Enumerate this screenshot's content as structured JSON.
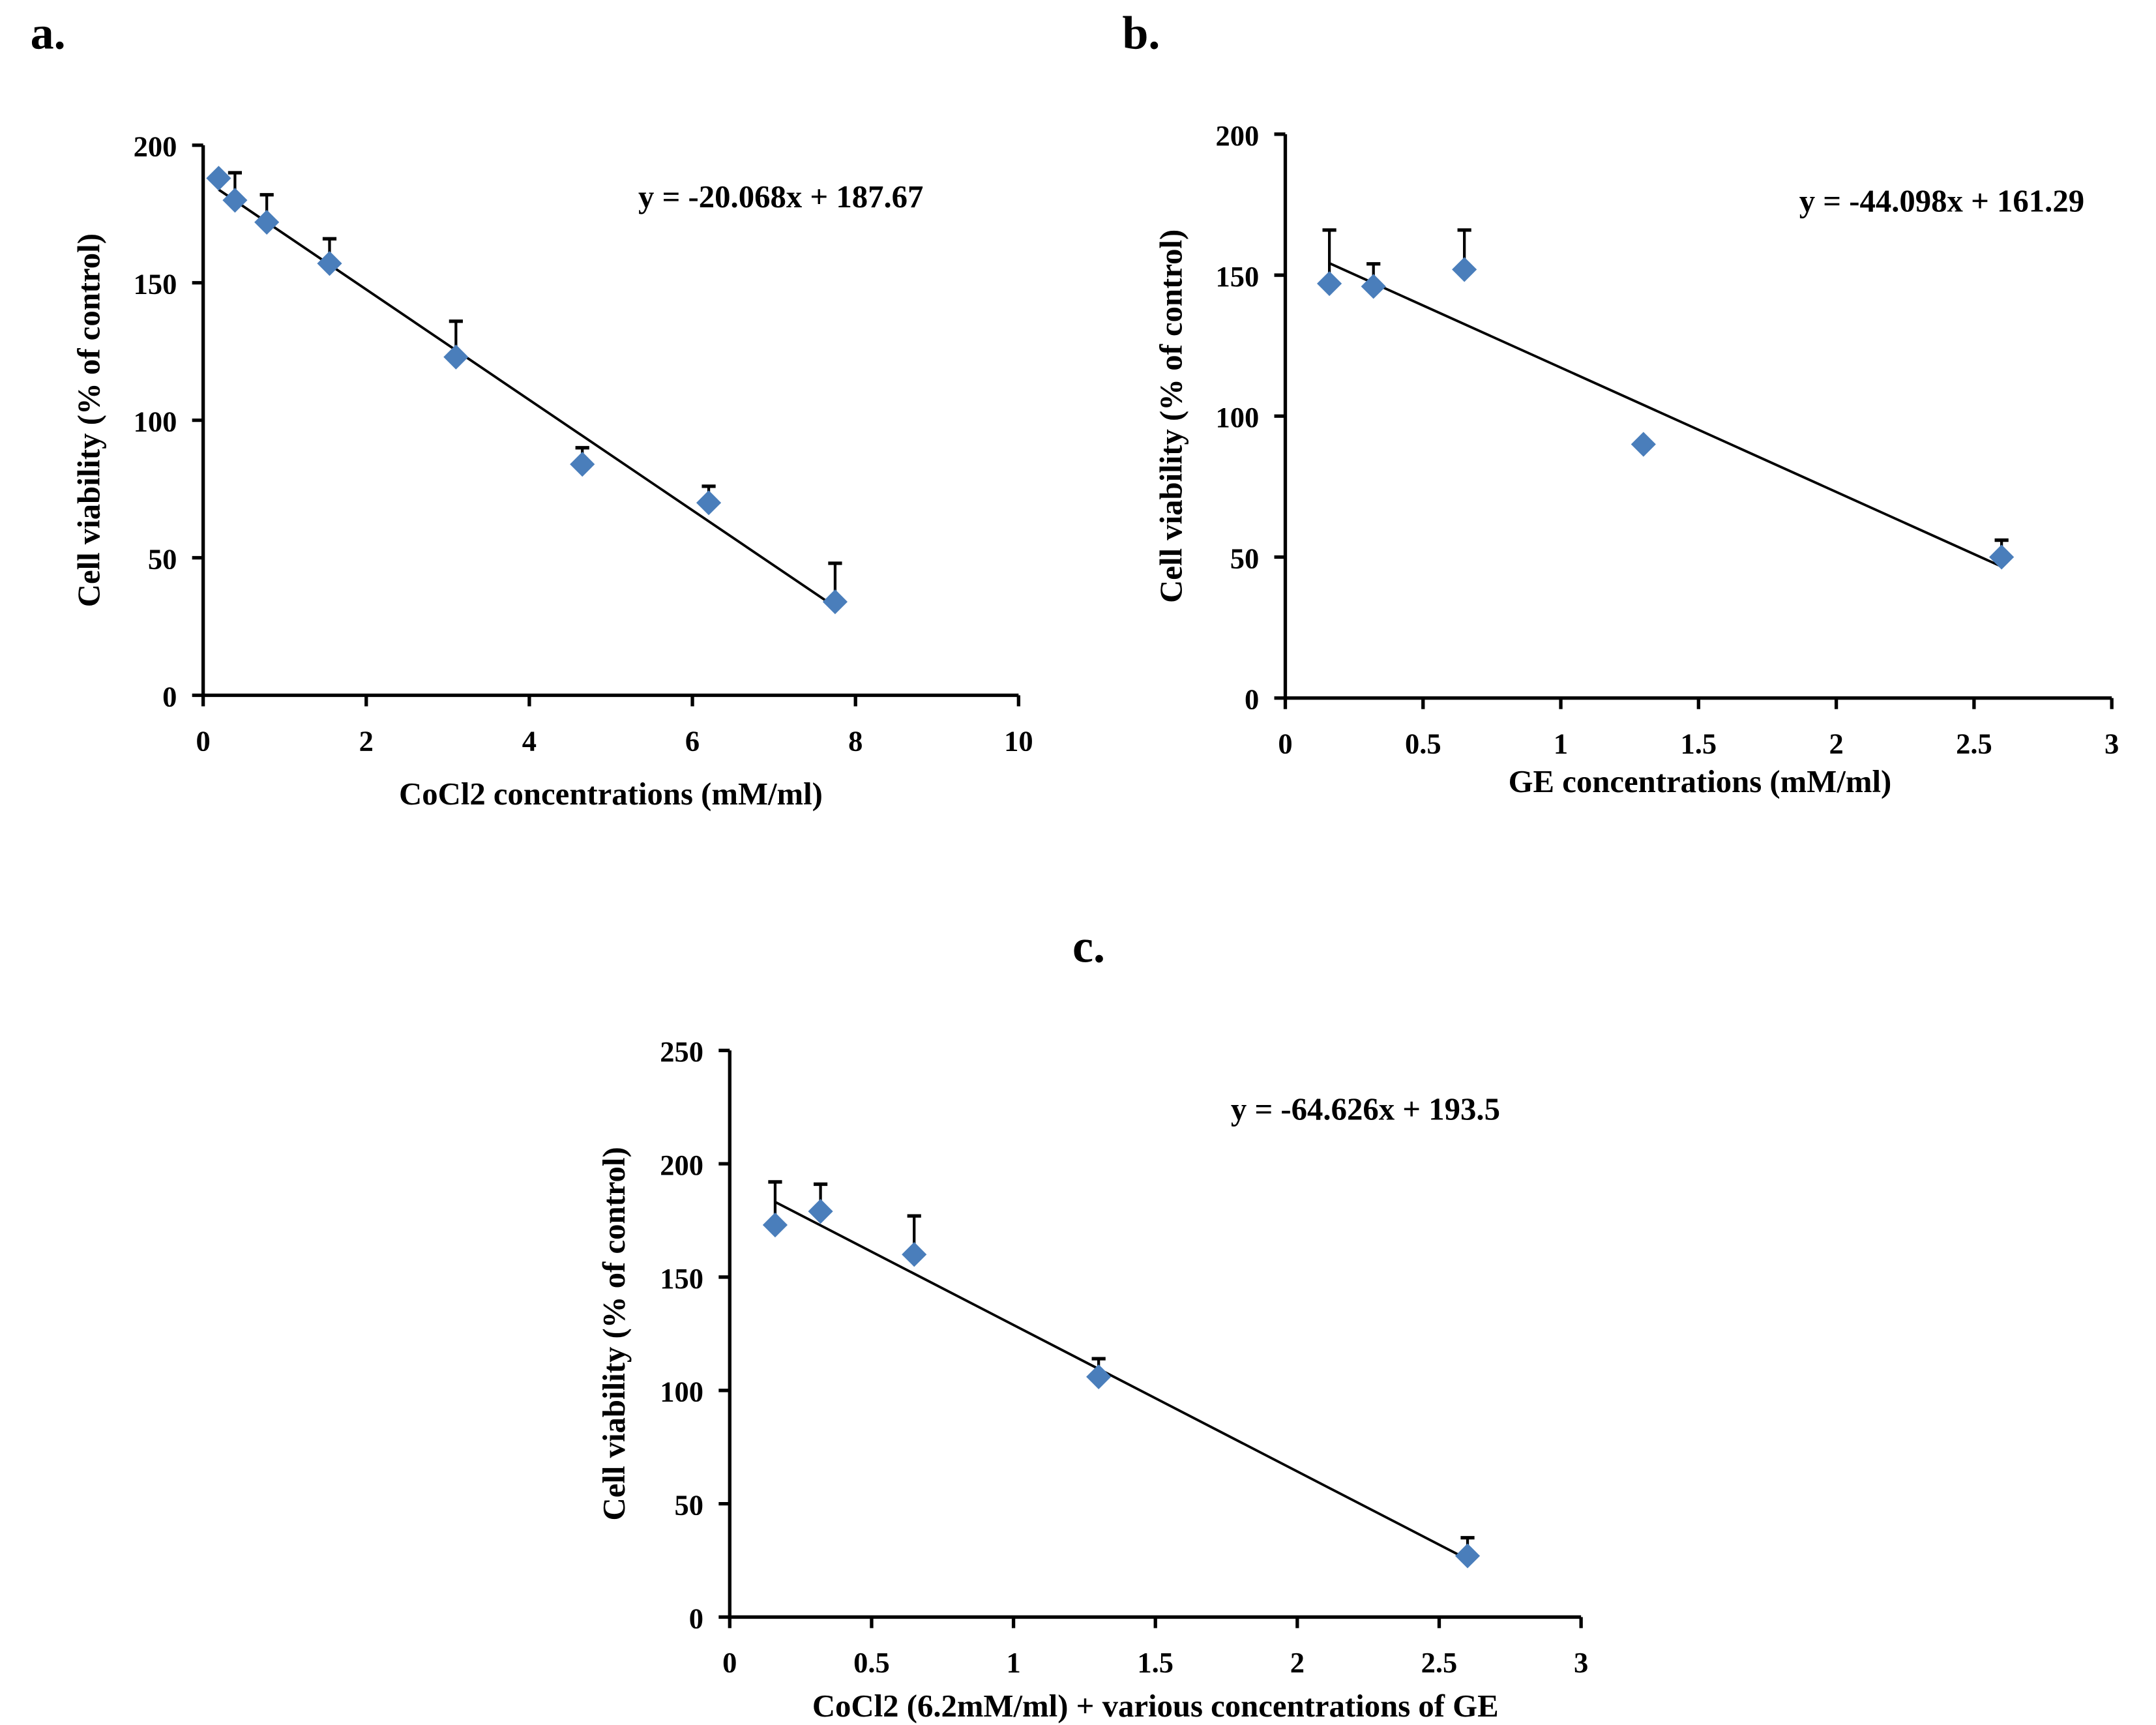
{
  "chart_data": [
    {
      "panel": "a.",
      "type": "scatter",
      "xlabel": "CoCl2 concentrations (mM/ml)",
      "ylabel": "Cell viability (% of control)",
      "xlim": [
        0,
        10
      ],
      "ylim": [
        0,
        200
      ],
      "xticks": [
        0,
        2,
        4,
        6,
        8,
        10
      ],
      "xtick_labels": [
        "0",
        "2",
        "4",
        "6",
        "8",
        "10"
      ],
      "yticks": [
        0,
        50,
        100,
        150,
        200
      ],
      "ytick_labels": [
        "0",
        "50",
        "100",
        "150",
        "200"
      ],
      "x": [
        0.19,
        0.39,
        0.78,
        1.55,
        3.1,
        4.65,
        6.2,
        7.75
      ],
      "y": [
        188,
        180,
        172,
        157,
        123,
        84,
        70,
        34
      ],
      "error_upper": [
        188,
        190,
        182,
        166,
        136,
        90,
        76,
        48
      ],
      "trendline": {
        "slope": -20.068,
        "intercept": 187.67,
        "x_range": [
          0.19,
          7.75
        ]
      },
      "equation": "y = -20.068x + 187.67",
      "marker_color": "#4a7ebb",
      "grid": false
    },
    {
      "panel": "b.",
      "type": "scatter",
      "xlabel": "GE concentrations (mM/ml)",
      "ylabel": "Cell viability (% of control)",
      "xlim": [
        0,
        3
      ],
      "ylim": [
        0,
        200
      ],
      "xticks": [
        0,
        0.5,
        1,
        1.5,
        2,
        2.5,
        3
      ],
      "xtick_labels": [
        "0",
        "0.5",
        "1",
        "1.5",
        "2",
        "2.5",
        "3"
      ],
      "yticks": [
        0,
        50,
        100,
        150,
        200
      ],
      "ytick_labels": [
        "0",
        "50",
        "100",
        "150",
        "200"
      ],
      "x": [
        0.16,
        0.32,
        0.65,
        1.3,
        2.6
      ],
      "y": [
        147,
        146,
        152,
        90,
        50
      ],
      "error_upper": [
        166,
        154,
        166,
        90,
        56
      ],
      "trendline": {
        "slope": -44.098,
        "intercept": 161.29,
        "x_range": [
          0.16,
          2.6
        ]
      },
      "equation": "y = -44.098x + 161.29",
      "marker_color": "#4a7ebb",
      "grid": false
    },
    {
      "panel": "c.",
      "type": "scatter",
      "xlabel": "CoCl2 (6.2mM/ml) + various concentrations of GE",
      "ylabel": "Cell viability (% of control)",
      "xlim": [
        0,
        3
      ],
      "ylim": [
        0,
        250
      ],
      "xticks": [
        0,
        0.5,
        1,
        1.5,
        2,
        2.5,
        3
      ],
      "xtick_labels": [
        "0",
        "0.5",
        "1",
        "1.5",
        "2",
        "2.5",
        "3"
      ],
      "yticks": [
        0,
        50,
        100,
        150,
        200,
        250
      ],
      "ytick_labels": [
        "0",
        "50",
        "100",
        "150",
        "200",
        "250"
      ],
      "x": [
        0.16,
        0.32,
        0.65,
        1.3,
        2.6
      ],
      "y": [
        173,
        179,
        160,
        106,
        27
      ],
      "error_upper": [
        192,
        191,
        177,
        114,
        35
      ],
      "trendline": {
        "slope": -64.626,
        "intercept": 193.5,
        "x_range": [
          0.16,
          2.6
        ]
      },
      "equation": "y = -64.626x + 193.5",
      "marker_color": "#4a7ebb",
      "grid": false
    }
  ]
}
